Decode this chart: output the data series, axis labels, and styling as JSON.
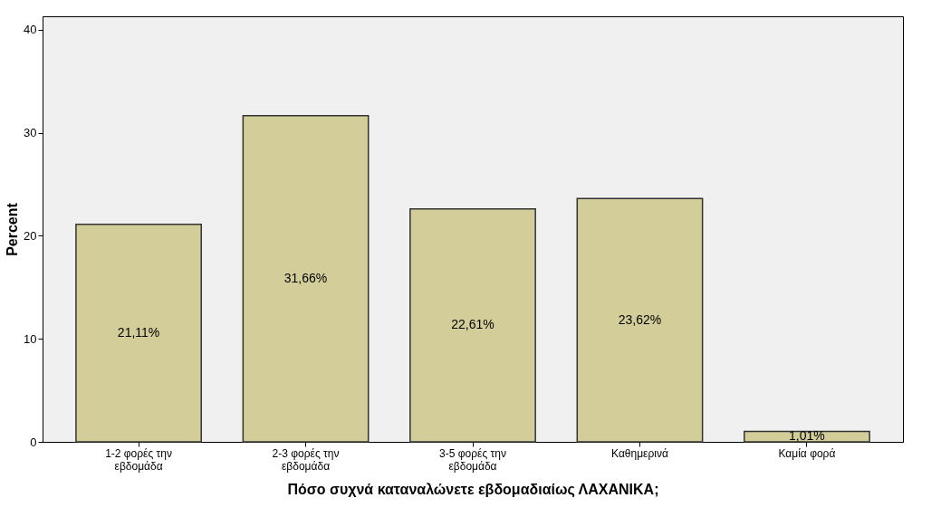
{
  "chart_data": {
    "type": "bar",
    "xlabel": "Πόσο συχνά καταναλώνετε εβδομαδιαίως ΛΑΧΑΝΙΚΑ;",
    "ylabel": "Percent",
    "categories": [
      "1-2 φορές την εβδομάδα",
      "2-3 φορές την εβδομάδα",
      "3-5 φορές  την εβδομάδα",
      "Καθημερινά",
      "Καμία φορά"
    ],
    "values": [
      21.11,
      31.66,
      22.61,
      23.62,
      1.01
    ],
    "value_labels": [
      "21,11%",
      "31,66%",
      "22,61%",
      "23,62%",
      "1,01%"
    ],
    "color": "#d3ce99",
    "ylim": [
      0,
      41.3
    ],
    "yticks": [
      0,
      10,
      20,
      30,
      40
    ],
    "grid": false
  }
}
